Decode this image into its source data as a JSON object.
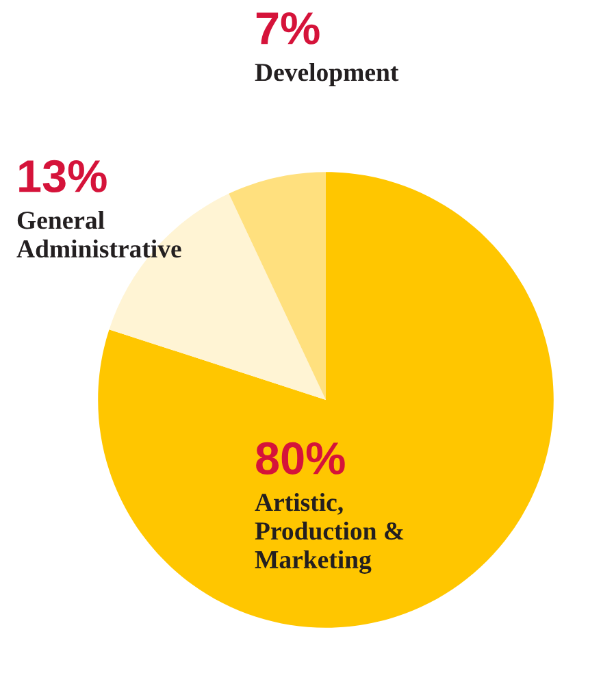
{
  "chart_data": {
    "type": "pie",
    "categories": [
      "Artistic,\nProduction &\nMarketing",
      "General\nAdministrative",
      "Development"
    ],
    "values": [
      80,
      13,
      7
    ],
    "colors": [
      "#ffc600",
      "#fff4d4",
      "#ffe07e"
    ],
    "value_labels": [
      "80%",
      "13%",
      "7%"
    ]
  }
}
